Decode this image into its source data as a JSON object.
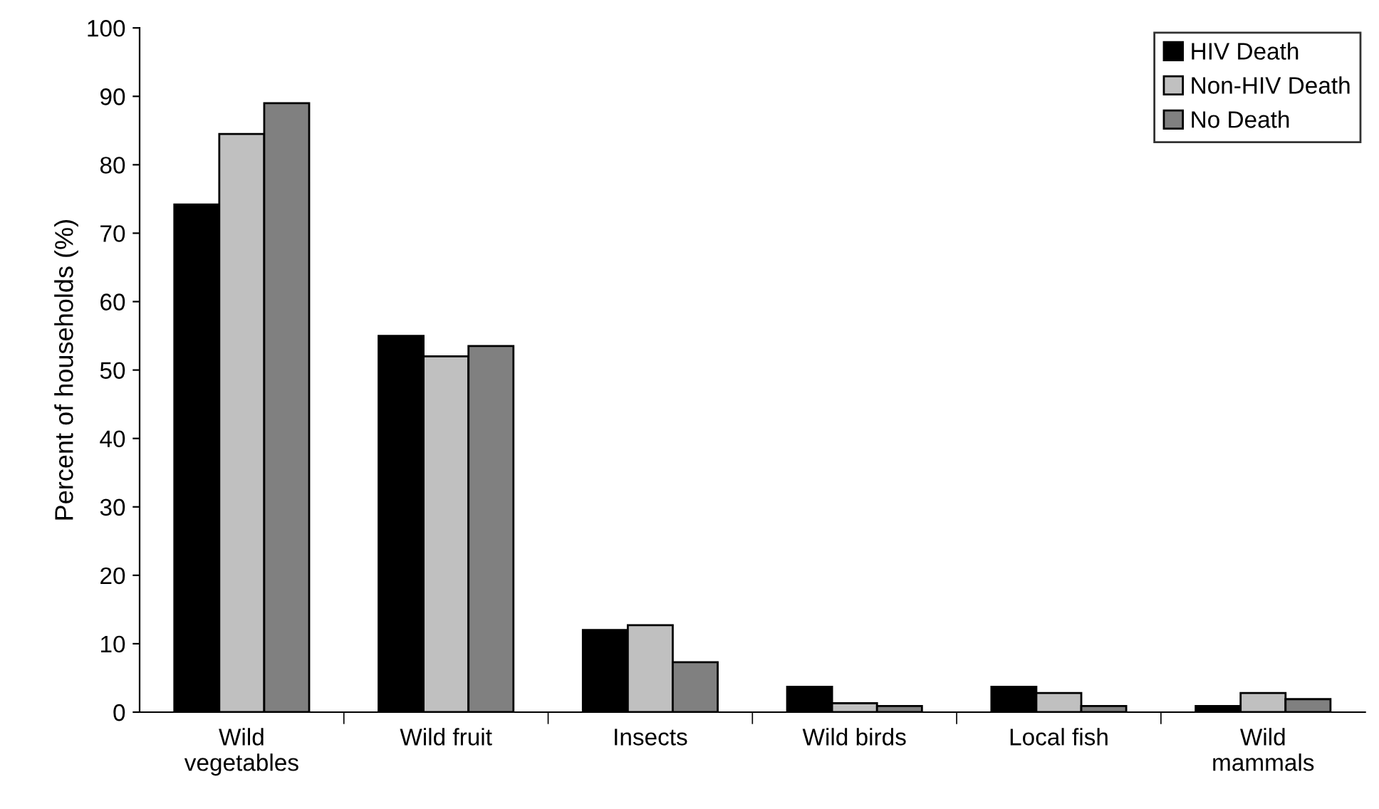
{
  "chart_data": {
    "type": "bar",
    "ylabel": "Percent of households (%)",
    "categories": [
      "Wild\nvegetables",
      "Wild fruit",
      "Insects",
      "Wild birds",
      "Local fish",
      "Wild\nmammals"
    ],
    "series": [
      {
        "name": "HIV Death",
        "color": "#000000",
        "values": [
          74.2,
          55,
          12,
          3.7,
          3.7,
          0.9
        ]
      },
      {
        "name": "Non-HIV Death",
        "color": "#c0c0c0",
        "values": [
          84.5,
          52,
          12.7,
          1.3,
          2.8,
          2.8
        ]
      },
      {
        "name": "No Death",
        "color": "#808080",
        "values": [
          89,
          53.5,
          7.3,
          0.9,
          0.9,
          1.9
        ]
      }
    ],
    "ylim": [
      0,
      100
    ],
    "yticks": [
      0,
      10,
      20,
      30,
      40,
      50,
      60,
      70,
      80,
      90,
      100
    ],
    "grid": false,
    "legend": "top right"
  }
}
